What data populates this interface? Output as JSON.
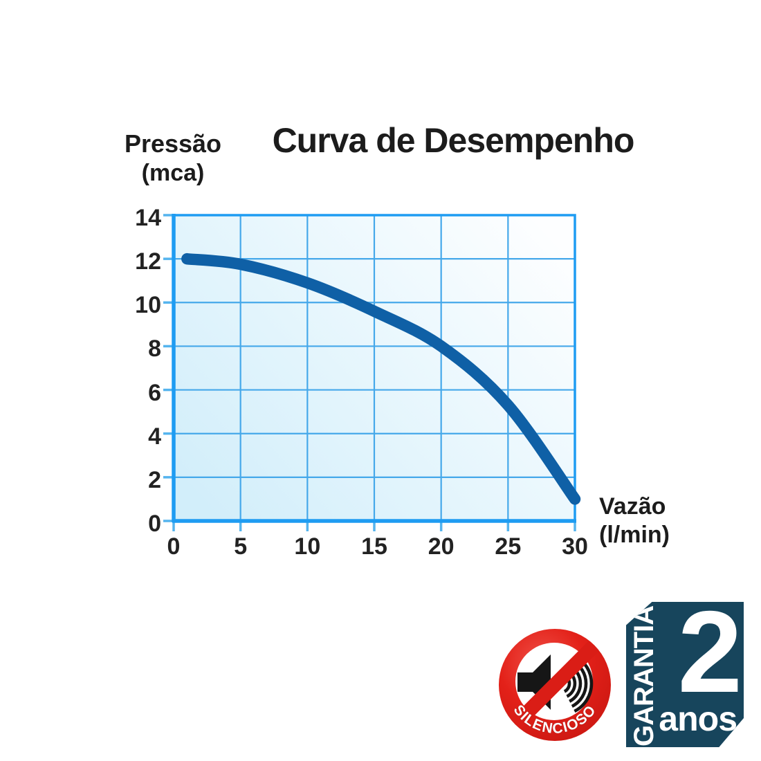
{
  "header": {
    "title": "Curva de Desempenho",
    "y_axis_title_line1": "Pressão",
    "y_axis_title_line2": "(mca)",
    "x_axis_title_line1": "Vazão",
    "x_axis_title_line2": "(l/min)"
  },
  "chart_data": {
    "type": "line",
    "title": "Curva de Desempenho",
    "xlabel": "Vazão (l/min)",
    "ylabel": "Pressão (mca)",
    "xlim": [
      0,
      30
    ],
    "ylim": [
      0,
      14
    ],
    "x_ticks": [
      0,
      5,
      10,
      15,
      20,
      25,
      30
    ],
    "y_ticks": [
      0,
      2,
      4,
      6,
      8,
      10,
      12,
      14
    ],
    "grid": true,
    "legend": "none",
    "series": [
      {
        "name": "pump-performance-curve",
        "points": [
          [
            1,
            12.0
          ],
          [
            5,
            11.75
          ],
          [
            10,
            10.9
          ],
          [
            15,
            9.6
          ],
          [
            20,
            8.0
          ],
          [
            25,
            5.3
          ],
          [
            30,
            1.0
          ]
        ]
      }
    ],
    "colors": {
      "curve": "#0f60a6",
      "grid_line": "#45a8ea",
      "frame": "#1e9cf2",
      "tick_mark": "#55b4ee",
      "plot_bg_from": "#d2eefa",
      "plot_bg_to": "#fdfeff",
      "text": "#1c1c1c"
    }
  },
  "badges": {
    "silencioso": {
      "label": "SILENCIOSO",
      "red": "#e32119",
      "red_dark": "#b5140f",
      "red_light": "#ef4f46"
    },
    "garantia": {
      "vertical_label": "GARANTIA",
      "number": "2",
      "unit": "anos",
      "teal": "#17455c"
    }
  }
}
